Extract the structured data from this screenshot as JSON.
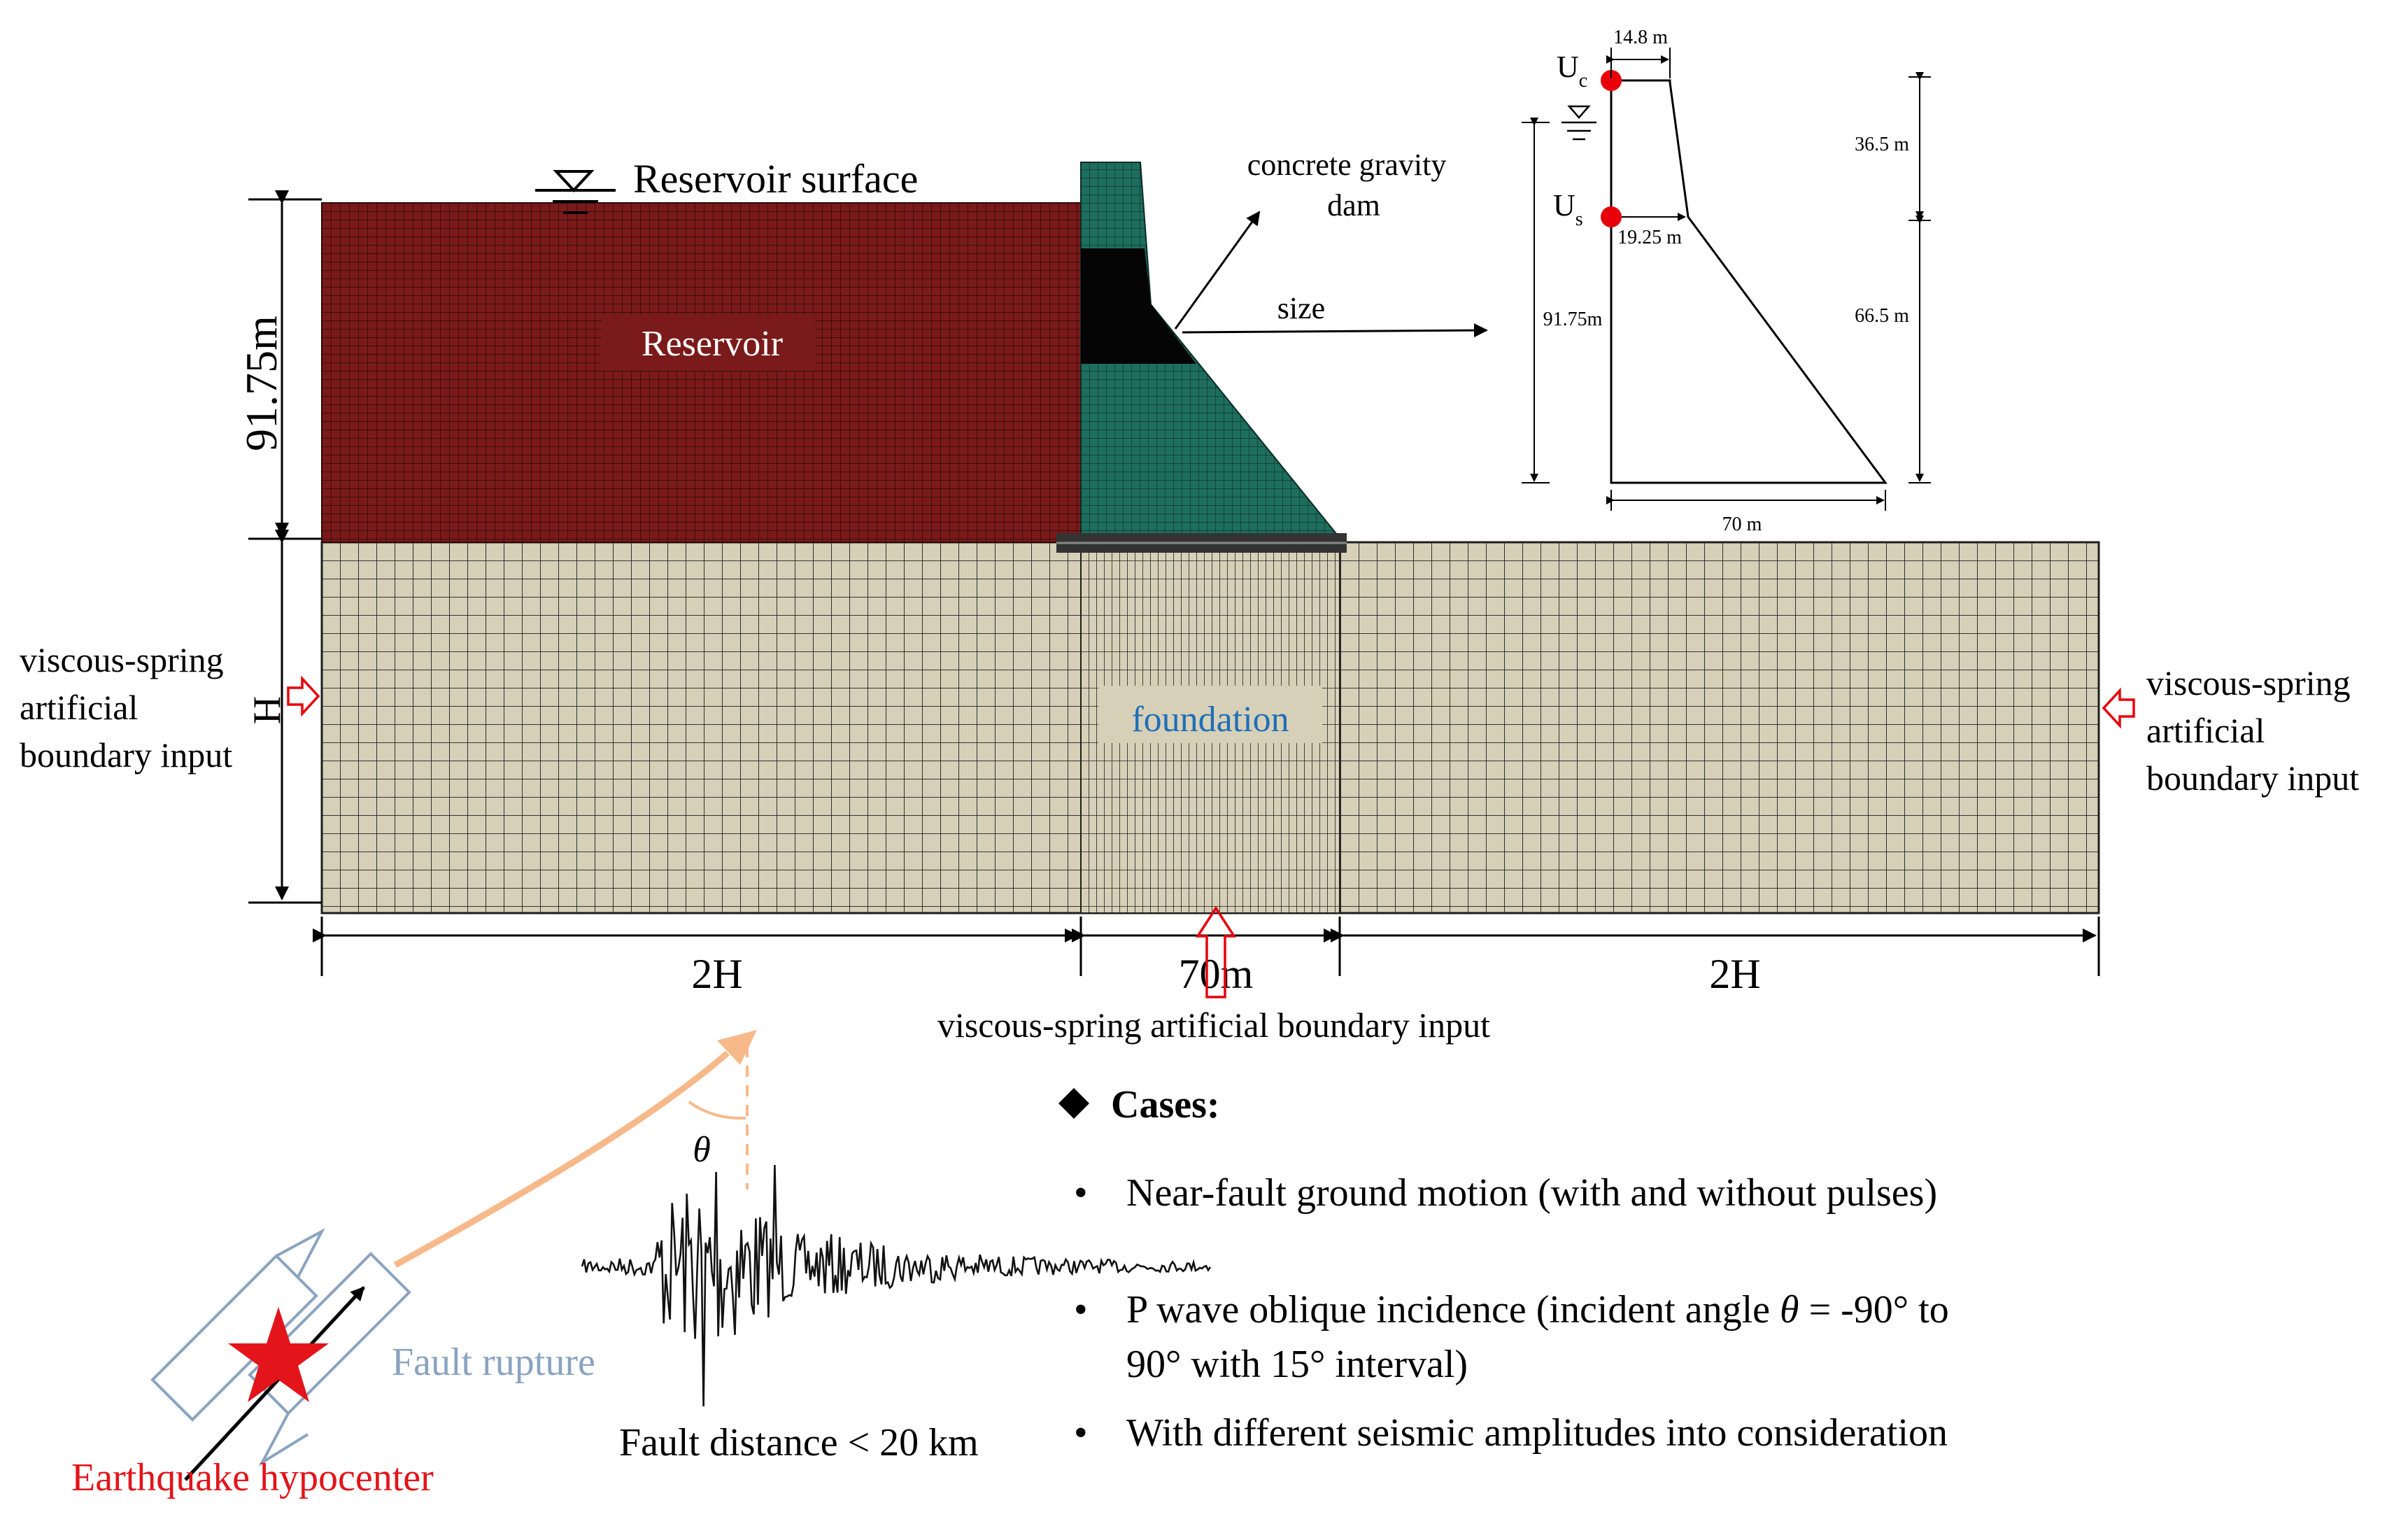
{
  "labels": {
    "reservoir_surface": "Reservoir surface",
    "reservoir": "Reservoir",
    "dam_label_line1": "concrete gravity",
    "dam_label_line2": "dam",
    "size": "size",
    "reservoir_height": "91.75m",
    "foundation_height": "H",
    "foundation": "foundation",
    "left_boundary_line1": "viscous-spring",
    "left_boundary_line2": "artificial",
    "left_boundary_line3": "boundary input",
    "right_boundary_line1": "viscous-spring",
    "right_boundary_line2": "artificial",
    "right_boundary_line3": "boundary input",
    "width_left": "2H",
    "width_mid": "70m",
    "width_right": "2H",
    "bottom_boundary": "viscous-spring artificial boundary input",
    "theta": "θ",
    "fault_rupture": "Fault rupture",
    "fault_distance": "Fault distance < 20 km",
    "hypocenter": "Earthquake hypocenter"
  },
  "dam_section": {
    "point_crest": "U",
    "point_crest_sub": "c",
    "point_slope": "U",
    "point_slope_sub": "s",
    "crest_width": "14.8 m",
    "slope_break_width": "19.25 m",
    "upper_height": "36.5 m",
    "lower_height": "66.5 m",
    "total_height": "91.75m",
    "base_width": "70 m"
  },
  "cases": {
    "heading": "Cases:",
    "item1": "Near-fault ground motion (with and without pulses)",
    "item2_line1_a": "P wave oblique incidence (incident angle ",
    "item2_theta": "θ",
    "item2_line1_b": " = -90° to",
    "item2_line2": "90° with 15° interval)",
    "item3": "With different seismic amplitudes into consideration"
  },
  "colors": {
    "reservoir": "#7b1a1a",
    "dam": "#1e6e5e",
    "foundation": "#d7d0b8",
    "monitor_point": "#e8000b",
    "wave_arrow": "#f7b98a",
    "hypocenter_star": "#e3141a",
    "fault_rupture_text": "#8aa3c0",
    "foundation_text": "#1d6fb8"
  }
}
